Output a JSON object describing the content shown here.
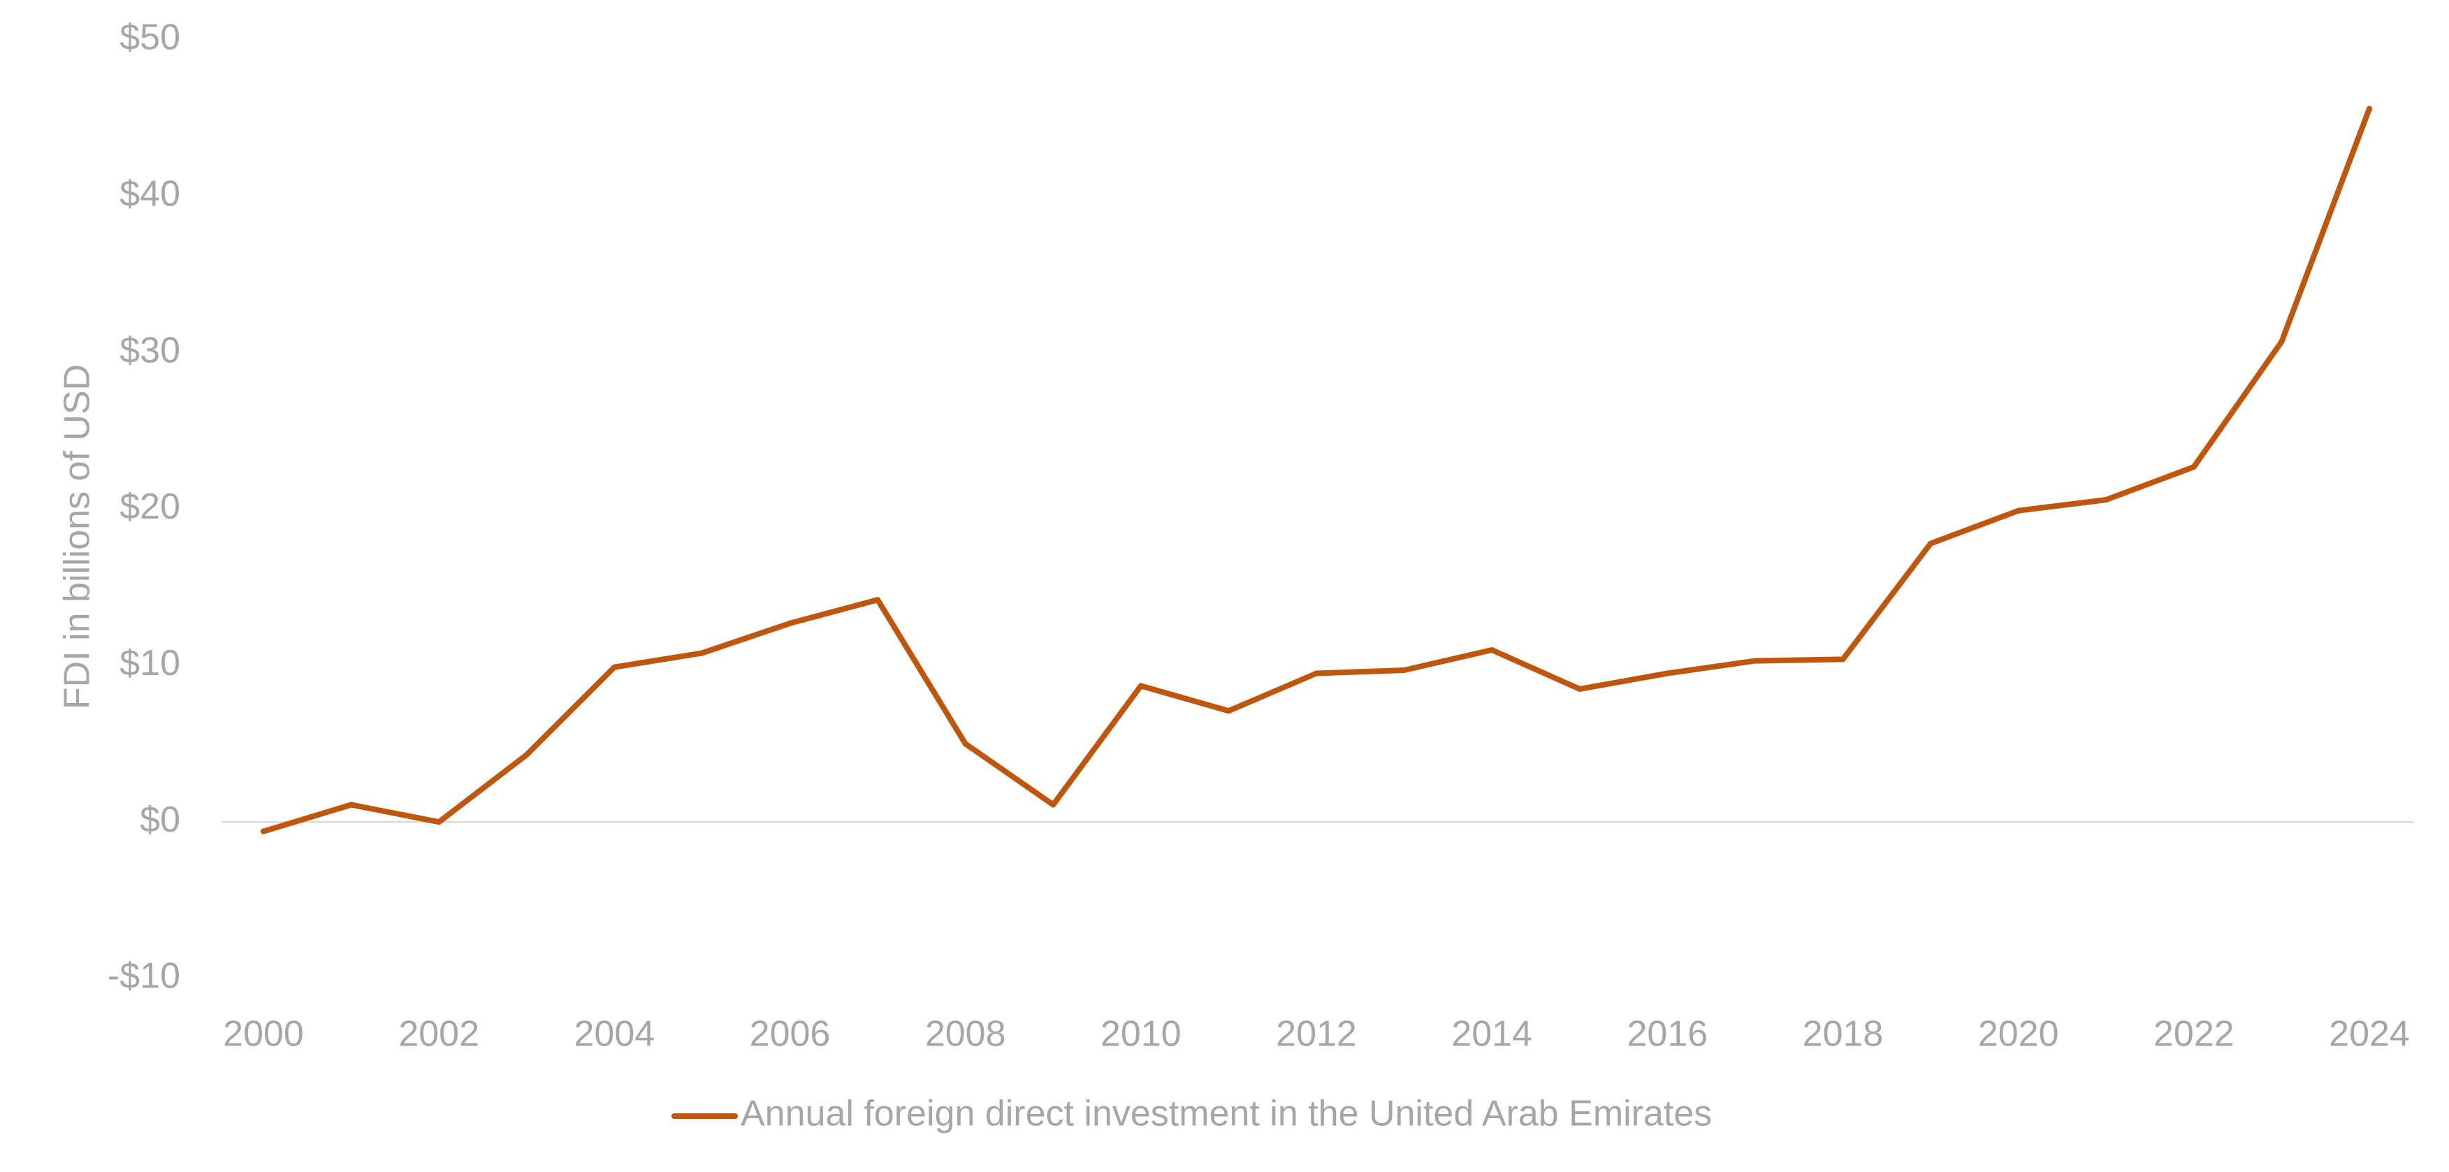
{
  "chart_data": {
    "type": "line",
    "title": "",
    "xlabel": "",
    "ylabel": "FDI in billions of USD",
    "x": [
      2000,
      2001,
      2002,
      2003,
      2004,
      2005,
      2006,
      2007,
      2008,
      2009,
      2010,
      2011,
      2012,
      2013,
      2014,
      2015,
      2016,
      2017,
      2018,
      2019,
      2020,
      2021,
      2022,
      2023,
      2024
    ],
    "xticks": [
      "2000",
      "2002",
      "2004",
      "2006",
      "2008",
      "2010",
      "2012",
      "2014",
      "2016",
      "2018",
      "2020",
      "2022",
      "2024"
    ],
    "yticks": [
      {
        "value": -10,
        "label": "-$10"
      },
      {
        "value": 0,
        "label": "$0"
      },
      {
        "value": 10,
        "label": "$10"
      },
      {
        "value": 20,
        "label": "$20"
      },
      {
        "value": 30,
        "label": "$30"
      },
      {
        "value": 40,
        "label": "$40"
      },
      {
        "value": 50,
        "label": "$50"
      }
    ],
    "ylim": [
      -10,
      50
    ],
    "grid": false,
    "legend_position": "bottom-center",
    "series": [
      {
        "name": "Annual foreign direct investment in the United Arab Emirates",
        "color": "#c0560c",
        "values": [
          -0.6,
          1.1,
          0.0,
          4.3,
          9.9,
          10.8,
          12.7,
          14.2,
          5.0,
          1.1,
          8.7,
          7.1,
          9.5,
          9.7,
          11.0,
          8.5,
          9.5,
          10.3,
          10.4,
          17.8,
          19.9,
          20.6,
          22.7,
          30.7,
          45.6
        ]
      }
    ]
  }
}
